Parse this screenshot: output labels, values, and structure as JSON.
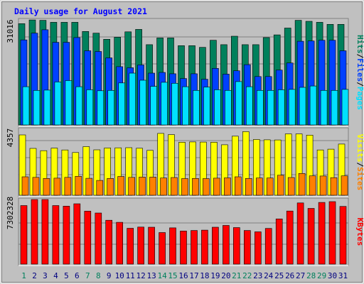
{
  "colors": {
    "background": "#c0c0c0",
    "frame": "#808080",
    "grid": "#7f7f7f",
    "title": "#0000ff",
    "hits": "#00805c",
    "files": "#0040ff",
    "pages": "#00e0ff",
    "visits": "#ffff00",
    "sites": "#ff8000",
    "kbytes": "#ff0000",
    "weekend_label": "#00805c",
    "weekday_label": "#000080"
  },
  "chart_data": {
    "type": "bar",
    "title": "Daily usage for August 2021",
    "categories": [
      "1",
      "2",
      "3",
      "4",
      "5",
      "6",
      "7",
      "8",
      "9",
      "10",
      "11",
      "12",
      "13",
      "14",
      "15",
      "16",
      "17",
      "18",
      "19",
      "20",
      "21",
      "22",
      "23",
      "24",
      "25",
      "26",
      "27",
      "28",
      "29",
      "30",
      "31"
    ],
    "weekend_days": [
      "1",
      "7",
      "8",
      "14",
      "15",
      "21",
      "22",
      "28",
      "29"
    ],
    "panels": [
      {
        "axis_label": "31016",
        "legend": [
          {
            "text": "Pages",
            "color": "#00e0ff"
          },
          {
            "text": "Files",
            "color": "#0040ff"
          },
          {
            "text": "Hits",
            "color": "#00805c"
          }
        ],
        "ylim": [
          0,
          31016
        ],
        "series": [
          {
            "name": "Hits",
            "color": "#00805c",
            "values": [
              29900,
              31000,
              30900,
              30300,
              30300,
              30300,
              27600,
              27100,
              25300,
              25900,
              27500,
              28200,
              23700,
              25700,
              25700,
              23400,
              23400,
              22900,
              25000,
              23700,
              26200,
              23700,
              23700,
              25800,
              26600,
              28600,
              30900,
              30600,
              30300,
              29700,
              29700
            ]
          },
          {
            "name": "Files",
            "color": "#0040ff",
            "values": [
              25100,
              27100,
              28100,
              24400,
              24400,
              25800,
              21900,
              21700,
              19800,
              17200,
              16900,
              17700,
              15300,
              15500,
              15100,
              13700,
              15100,
              13500,
              16700,
              15000,
              16000,
              17800,
              14300,
              14300,
              16200,
              18300,
              24700,
              24800,
              25000,
              25000,
              21900
            ]
          },
          {
            "name": "Pages",
            "color": "#00e0ff",
            "values": [
              11300,
              10200,
              10300,
              12700,
              13100,
              11300,
              10400,
              10100,
              10200,
              12400,
              15300,
              13200,
              11400,
              12600,
              12300,
              11300,
              10200,
              11200,
              10400,
              10200,
              12800,
              11300,
              10200,
              10200,
              10400,
              10500,
              11100,
              11500,
              10200,
              10200,
              10500
            ]
          }
        ]
      },
      {
        "axis_label": "4357",
        "legend": [
          {
            "text": "Sites",
            "color": "#ff8000"
          },
          {
            "text": "Visits",
            "color": "#ffff00"
          }
        ],
        "ylim": [
          0,
          4357
        ],
        "series": [
          {
            "name": "Visits",
            "color": "#ffff00",
            "values": [
              3980,
              3090,
              2940,
              3110,
              2990,
              2820,
              3210,
              3000,
              3120,
              3130,
              3140,
              3100,
              2960,
              4080,
              4000,
              3500,
              3520,
              3510,
              3500,
              3330,
              3900,
              4200,
              3680,
              3660,
              3650,
              4050,
              4050,
              3970,
              2990,
              3040,
              3380
            ]
          },
          {
            "name": "Sites",
            "color": "#ff8000",
            "values": [
              1220,
              1180,
              1110,
              1130,
              1180,
              1250,
              1120,
              980,
              1110,
              1240,
              1180,
              1200,
              1200,
              1140,
              1170,
              1100,
              1110,
              1100,
              1130,
              1150,
              1220,
              1110,
              1140,
              1140,
              1320,
              1170,
              1440,
              1280,
              1270,
              1160,
              1280
            ]
          }
        ]
      },
      {
        "axis_label": "7302328",
        "legend": [
          {
            "text": "KBytes",
            "color": "#ff0000"
          }
        ],
        "ylim": [
          0,
          7302328
        ],
        "series": [
          {
            "name": "KBytes",
            "color": "#ff0000",
            "values": [
              6620000,
              7320000,
              7310000,
              6620000,
              6560000,
              6820000,
              5990000,
              5780000,
              4960000,
              4730000,
              4050000,
              4190000,
              4170000,
              3570000,
              4100000,
              3740000,
              3800000,
              3840000,
              4170000,
              4370000,
              4130000,
              3800000,
              3650000,
              4040000,
              5110000,
              6000000,
              6920000,
              6300000,
              6970000,
              7060000,
              6520000
            ]
          }
        ]
      }
    ]
  }
}
